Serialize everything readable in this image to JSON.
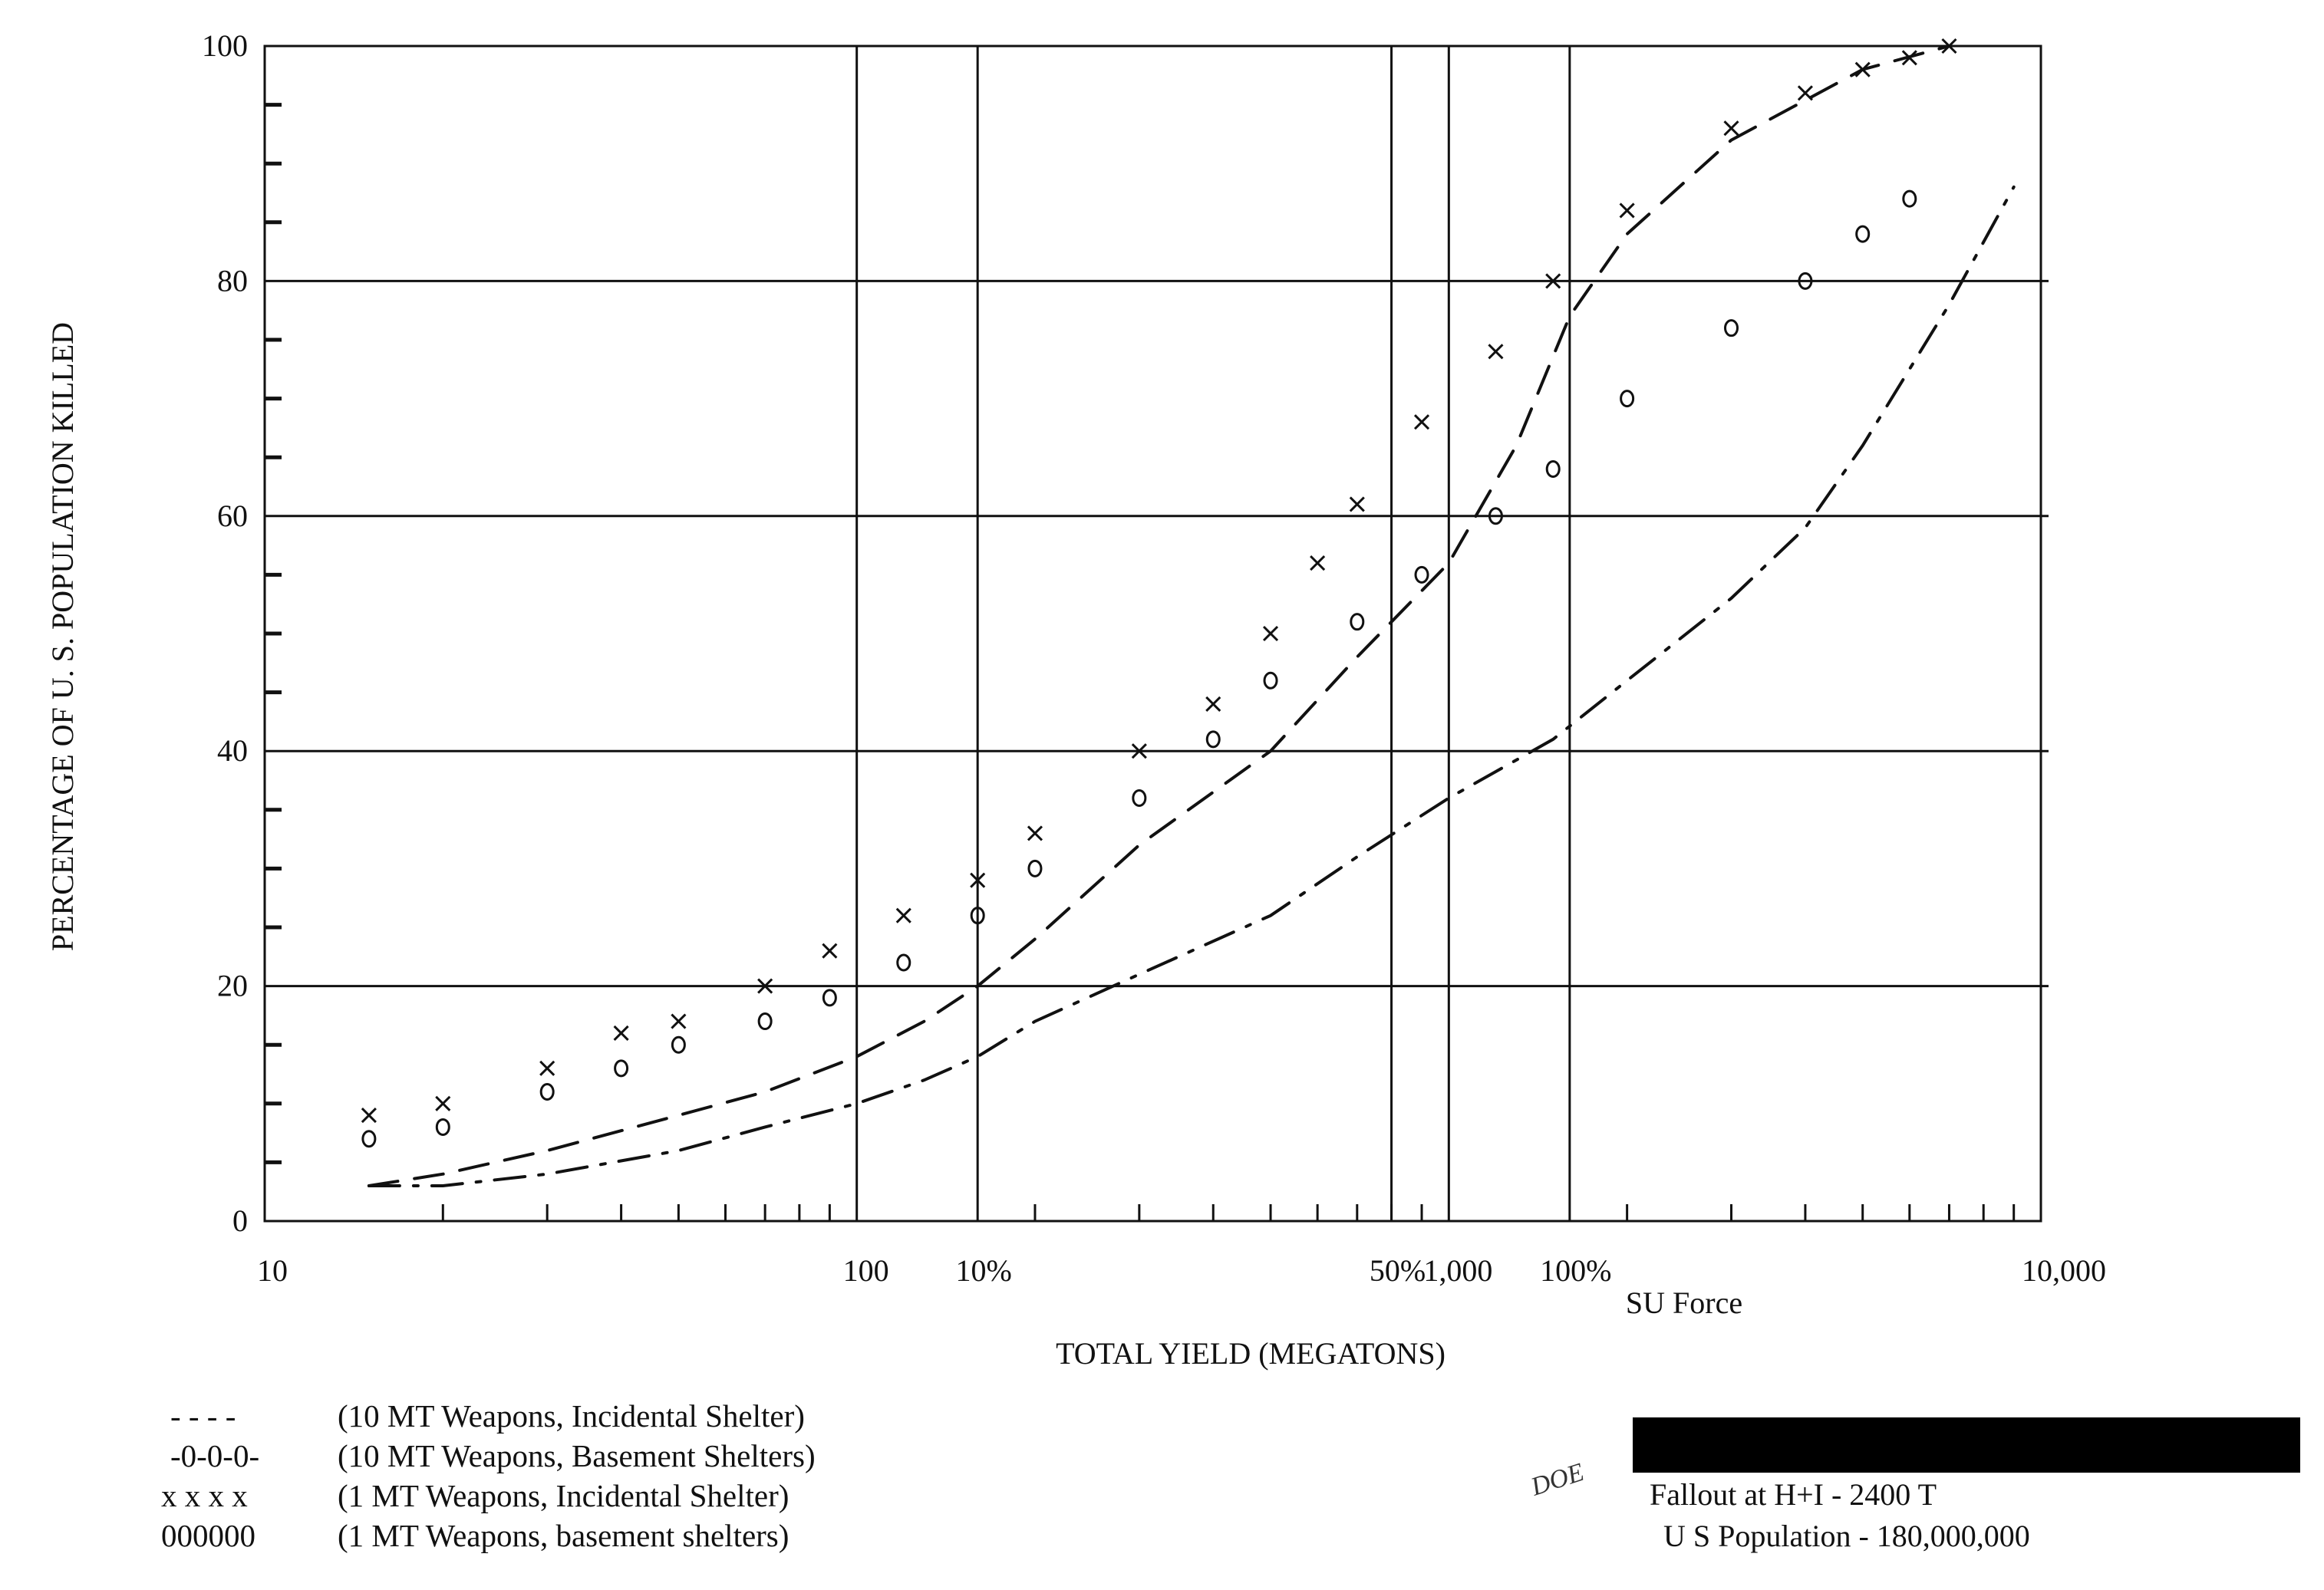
{
  "chart_data": {
    "type": "line",
    "ylabel": "PERCENTAGE OF U. S. POPULATION KILLED",
    "xlabel": "TOTAL YIELD (MEGATONS)",
    "x_scale": "log",
    "xlim": [
      10,
      10000
    ],
    "ylim": [
      0,
      100
    ],
    "grid": true,
    "y_ticks": [
      {
        "value": 0,
        "label": "0"
      },
      {
        "value": 20,
        "label": "20"
      },
      {
        "value": 40,
        "label": "40"
      },
      {
        "value": 60,
        "label": "60"
      },
      {
        "value": 80,
        "label": "80"
      },
      {
        "value": 100,
        "label": "100"
      }
    ],
    "x_ticks": [
      {
        "value": 10,
        "label": "10"
      },
      {
        "value": 100,
        "label": "100"
      },
      {
        "value": 1000,
        "label": "1,000"
      },
      {
        "value": 10000,
        "label": "10,000"
      }
    ],
    "x_reference_lines": [
      {
        "value": 160,
        "label": "10%"
      },
      {
        "value": 800,
        "label": "50%"
      },
      {
        "value": 1600,
        "label": "100%"
      }
    ],
    "x_reference_sublabel": "SU Force",
    "extra_vertical_lines": [
      100,
      1000
    ],
    "series": [
      {
        "name": "(10 MT Weapons, Incidental Shelter)",
        "marker": "dash",
        "legend_symbol": "- - - -",
        "x": [
          15,
          20,
          30,
          50,
          70,
          100,
          130,
          160,
          200,
          300,
          500,
          700,
          1000,
          1300,
          1600,
          2000,
          3000,
          5000,
          7000
        ],
        "y": [
          3,
          4,
          6,
          9,
          11,
          14,
          17,
          20,
          24,
          32,
          40,
          48,
          56,
          66,
          77,
          84,
          92,
          98,
          100
        ]
      },
      {
        "name": "(10 MT Weapons, Basement Shelters)",
        "marker": "dash-dot",
        "legend_symbol": "-0-0-0-",
        "x": [
          15,
          20,
          30,
          50,
          70,
          100,
          130,
          160,
          200,
          300,
          500,
          700,
          1000,
          1500,
          2000,
          3000,
          4000,
          5000,
          7000,
          9000
        ],
        "y": [
          3,
          3,
          4,
          6,
          8,
          10,
          12,
          14,
          17,
          21,
          26,
          31,
          36,
          41,
          46,
          53,
          59,
          66,
          78,
          88
        ]
      },
      {
        "name": "(1 MT Weapons, Incidental Shelter)",
        "marker": "x",
        "legend_symbol": "x x x x",
        "x": [
          15,
          20,
          30,
          40,
          50,
          70,
          90,
          120,
          160,
          200,
          300,
          400,
          500,
          600,
          700,
          900,
          1200,
          1500,
          2000,
          3000,
          4000,
          5000,
          6000,
          7000
        ],
        "y": [
          9,
          10,
          13,
          16,
          17,
          20,
          23,
          26,
          29,
          33,
          40,
          44,
          50,
          56,
          61,
          68,
          74,
          80,
          86,
          93,
          96,
          98,
          99,
          100
        ]
      },
      {
        "name": "(1 MT Weapons, basement shelters)",
        "marker": "o",
        "legend_symbol": "000000",
        "x": [
          15,
          20,
          30,
          40,
          50,
          70,
          90,
          120,
          160,
          200,
          300,
          400,
          500,
          700,
          900,
          1200,
          1500,
          2000,
          3000,
          4000,
          5000,
          6000
        ],
        "y": [
          7,
          8,
          11,
          13,
          15,
          17,
          19,
          22,
          26,
          30,
          36,
          41,
          46,
          51,
          55,
          60,
          64,
          70,
          76,
          80,
          84,
          87
        ]
      }
    ]
  },
  "notes": {
    "fallout": "Fallout at H+I - 2400 T",
    "population": "U S Population - 180,000,000",
    "stamp": "DOE"
  }
}
